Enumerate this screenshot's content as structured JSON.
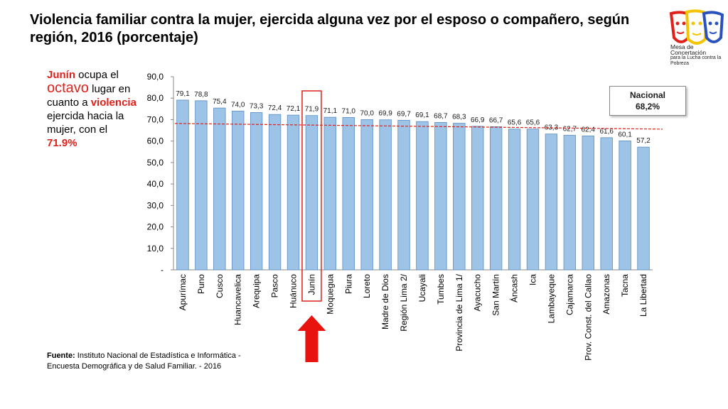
{
  "header": {
    "title": "Violencia familiar contra la mujer, ejercida alguna vez por el esposo o compañero, según región, 2016 (porcentaje)"
  },
  "logo": {
    "line1": "Mesa de Concertación",
    "line2": "para la Lucha contra la Pobreza",
    "colors": [
      "#e0201b",
      "#f5c400",
      "#2a52be"
    ]
  },
  "sidebar": {
    "p1_red": "Junín",
    "p1": " ocupa el ",
    "p2_big": "octavo",
    "p2": " lugar en cuanto a ",
    "p3_red": "violencia",
    "p3": " ejercida hacia la mujer, con el ",
    "p4_red": "71.9%"
  },
  "nacional": {
    "label": "Nacional",
    "value": "68,2%"
  },
  "source": {
    "label": "Fuente:",
    "text": " Instituto Nacional de Estadística e Informática - Encuesta Demográfica y de Salud Familiar. - 2016"
  },
  "chart_data": {
    "type": "bar",
    "categories": [
      "Apurímac",
      "Puno",
      "Cusco",
      "Huancavelica",
      "Arequipa",
      "Pasco",
      "Huánuco",
      "Junín",
      "Moquegua",
      "Piura",
      "Loreto",
      "Madre de Dios",
      "Región Lima 2/",
      "Ucayali",
      "Tumbes",
      "Provincia de Lima 1/",
      "Ayacucho",
      "San Martín",
      "Áncash",
      "Ica",
      "Lambayeque",
      "Cajamarca",
      "Prov. Const. del Callao",
      "Amazonas",
      "Tacna",
      "La Libertad"
    ],
    "values": [
      79.1,
      78.8,
      75.4,
      74.0,
      73.3,
      72.4,
      72.1,
      71.9,
      71.1,
      71.0,
      70.0,
      69.9,
      69.7,
      69.1,
      68.7,
      68.3,
      66.9,
      66.7,
      65.6,
      65.6,
      63.3,
      62.7,
      62.4,
      61.6,
      60.1,
      57.2
    ],
    "value_labels": [
      "79,1",
      "78,8",
      "75,4",
      "74,0",
      "73,3",
      "72,4",
      "72,1",
      "71,9",
      "71,1",
      "71,0",
      "70,0",
      "69,9",
      "69,7",
      "69,1",
      "68,7",
      "68,3",
      "66,9",
      "66,7",
      "65,6",
      "65,6",
      "63,3",
      "62,7",
      "62,4",
      "61,6",
      "60,1",
      "57,2"
    ],
    "ylim": [
      0,
      90
    ],
    "yticks": [
      "-",
      "10,0",
      "20,0",
      "30,0",
      "40,0",
      "50,0",
      "60,0",
      "70,0",
      "80,0",
      "90,0"
    ],
    "reference_line": 68.2,
    "highlight": "Junín",
    "bar_color": "#9dc3e6",
    "bar_edge": "#5b8ec4",
    "reference_color": "#e0201b"
  }
}
